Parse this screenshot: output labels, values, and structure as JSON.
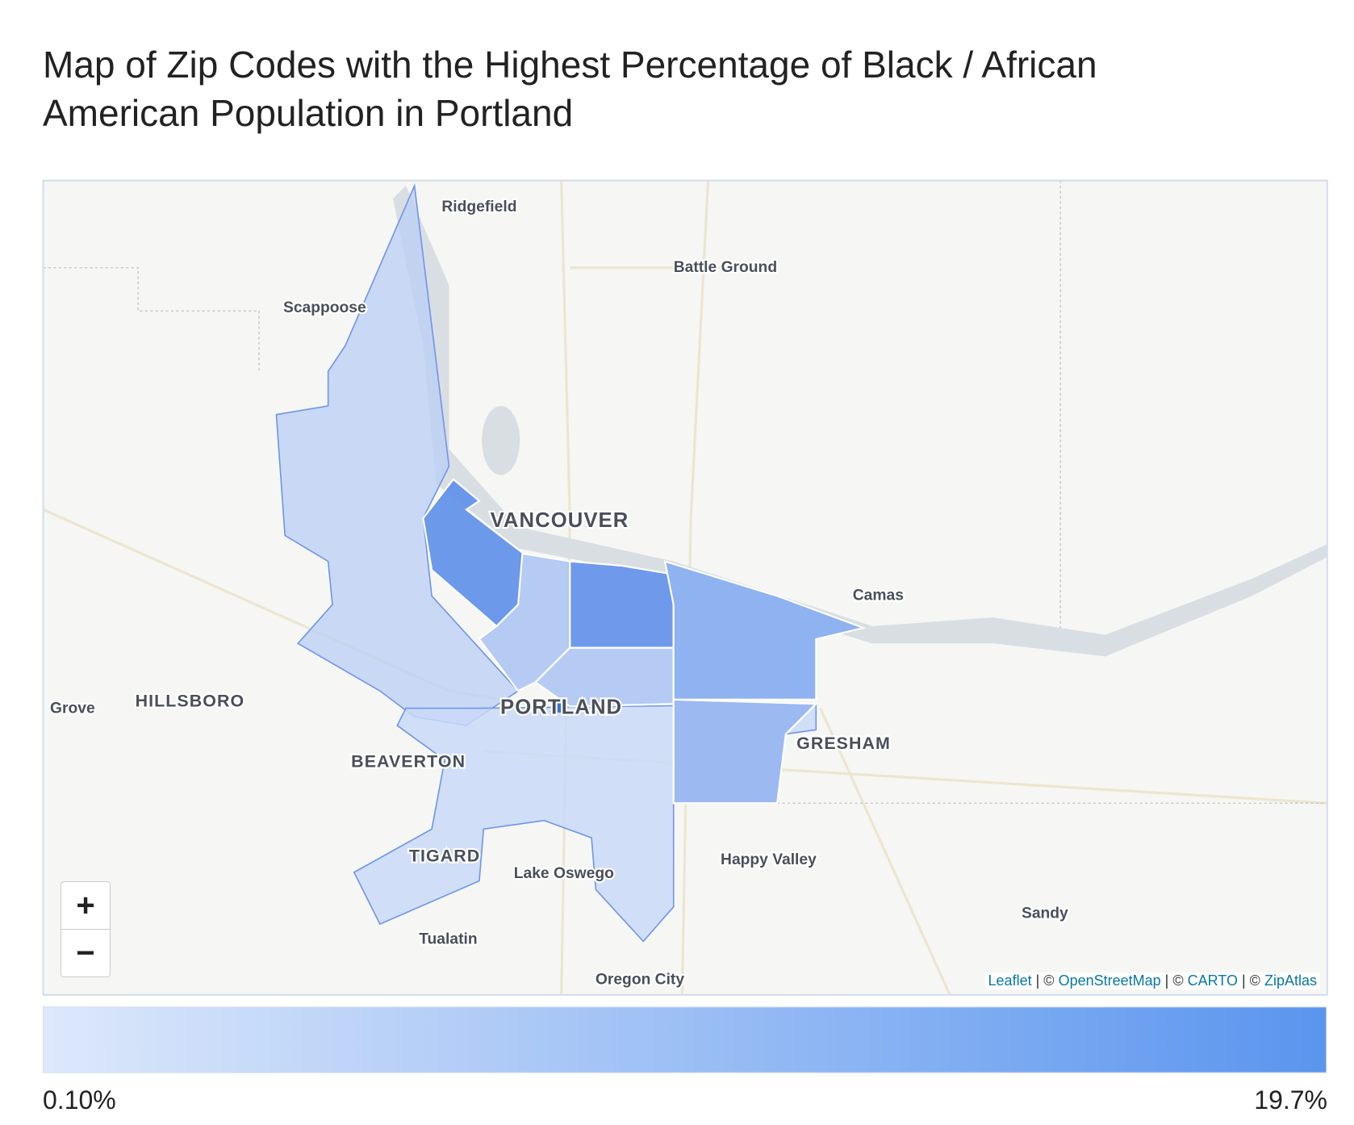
{
  "header": {
    "title": "Map of Zip Codes with the Highest Percentage of Black / African American Population in Portland"
  },
  "map": {
    "places": [
      {
        "label": "Ridgefield",
        "kind": "town"
      },
      {
        "label": "Battle Ground",
        "kind": "town"
      },
      {
        "label": "Scappoose",
        "kind": "town"
      },
      {
        "label": "VANCOUVER",
        "kind": "city"
      },
      {
        "label": "Camas",
        "kind": "town"
      },
      {
        "label": "Grove",
        "kind": "town"
      },
      {
        "label": "HILLSBORO",
        "kind": "city2"
      },
      {
        "label": "PORTLAND",
        "kind": "city"
      },
      {
        "label": "GRESHAM",
        "kind": "city2"
      },
      {
        "label": "BEAVERTON",
        "kind": "city2"
      },
      {
        "label": "TIGARD",
        "kind": "city2"
      },
      {
        "label": "Lake Oswego",
        "kind": "town"
      },
      {
        "label": "Happy Valley",
        "kind": "town"
      },
      {
        "label": "Sandy",
        "kind": "town"
      },
      {
        "label": "Tualatin",
        "kind": "town"
      },
      {
        "label": "Oregon City",
        "kind": "town"
      }
    ],
    "zoom": {
      "in": "+",
      "out": "−"
    },
    "attribution": [
      "Leaflet",
      "| ©",
      "OpenStreetMap",
      "| ©",
      "CARTO",
      "| ©",
      "ZipAtlas"
    ]
  },
  "legend": {
    "min_label": "0.10%",
    "max_label": "19.7%"
  }
}
